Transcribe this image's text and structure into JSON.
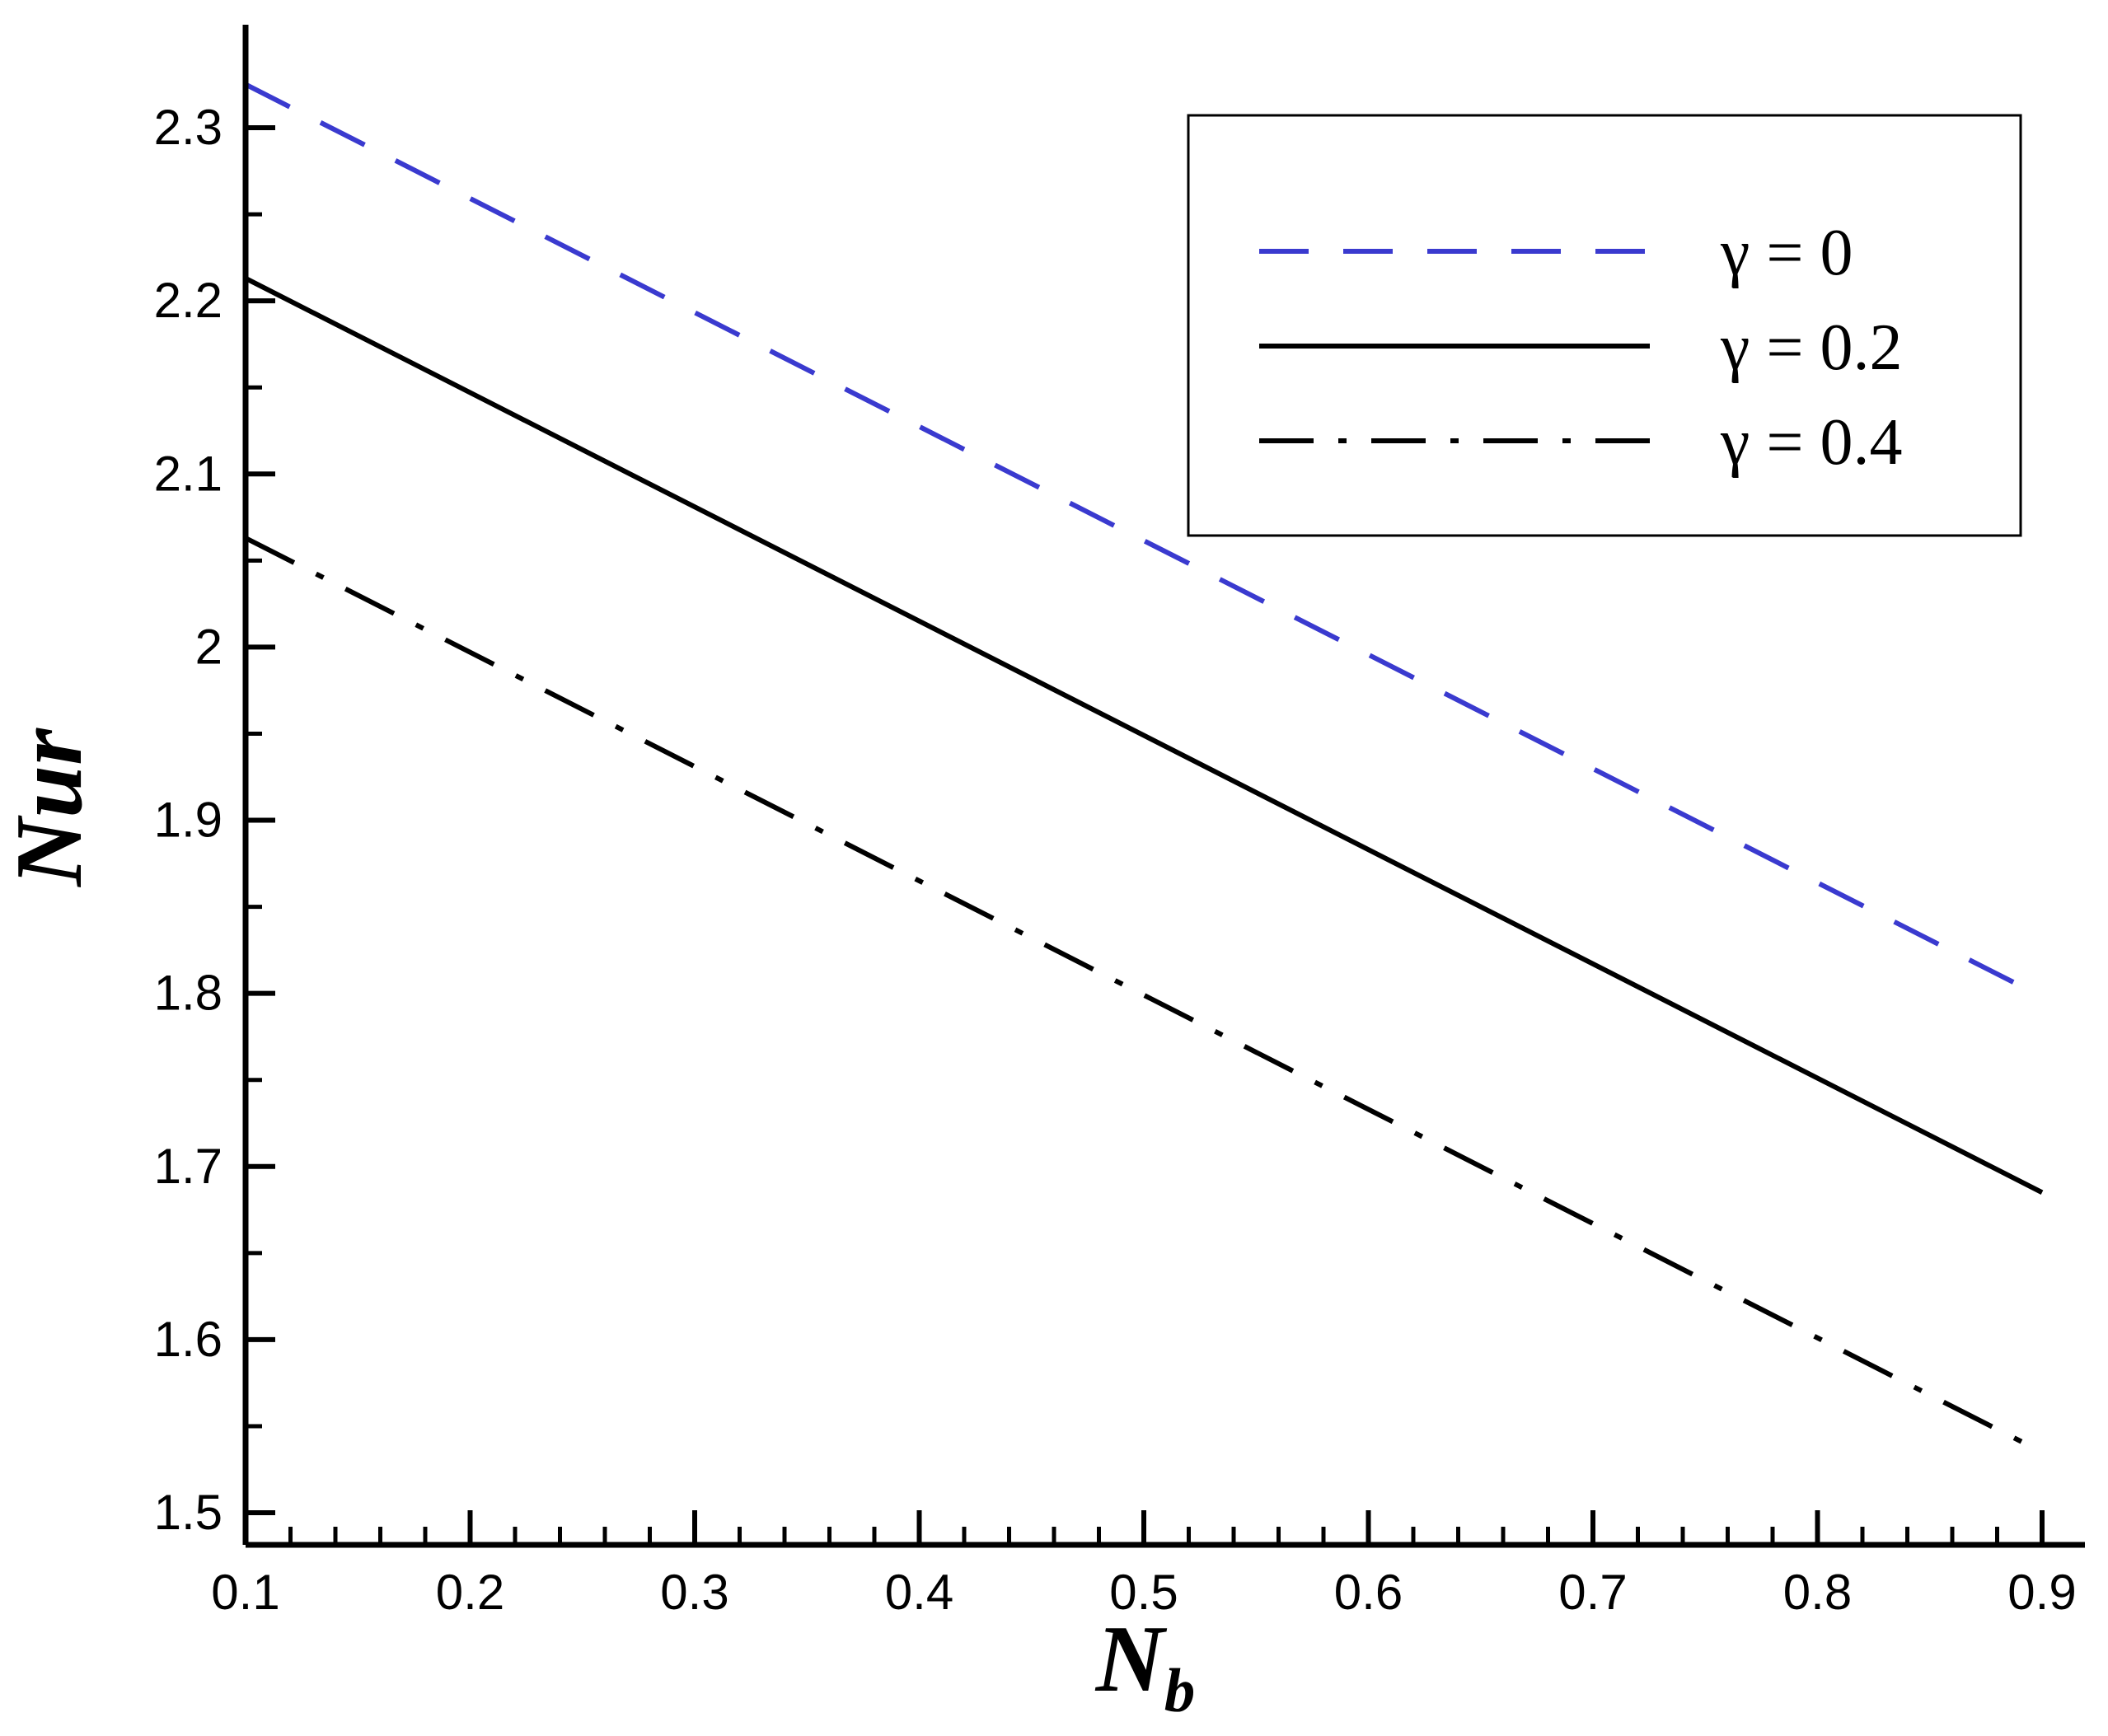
{
  "chart_data": {
    "type": "line",
    "title": "",
    "xlabel": {
      "main": "N",
      "sub": "b"
    },
    "ylabel": "Nur",
    "xlim": [
      0.1,
      0.9
    ],
    "ylim": [
      1.5,
      2.35
    ],
    "x_ticks": [
      "0.1",
      "0.2",
      "0.3",
      "0.4",
      "0.5",
      "0.6",
      "0.7",
      "0.8",
      "0.9"
    ],
    "y_ticks": [
      "1.5",
      "1.6",
      "1.7",
      "1.8",
      "1.9",
      "2",
      "2.1",
      "2.2",
      "2.3"
    ],
    "grid": false,
    "legend_position": "top-right",
    "series": [
      {
        "name": "γ = 0",
        "color": "#3a3acf",
        "style": "dashed",
        "x": [
          0.1,
          0.9
        ],
        "y": [
          2.325,
          1.798
        ]
      },
      {
        "name": "γ = 0.2",
        "color": "#000000",
        "style": "solid",
        "x": [
          0.1,
          0.9
        ],
        "y": [
          2.213,
          1.685
        ]
      },
      {
        "name": "γ = 0.4",
        "color": "#000000",
        "style": "dashdot",
        "x": [
          0.1,
          0.9
        ],
        "y": [
          2.063,
          1.535
        ]
      }
    ]
  }
}
